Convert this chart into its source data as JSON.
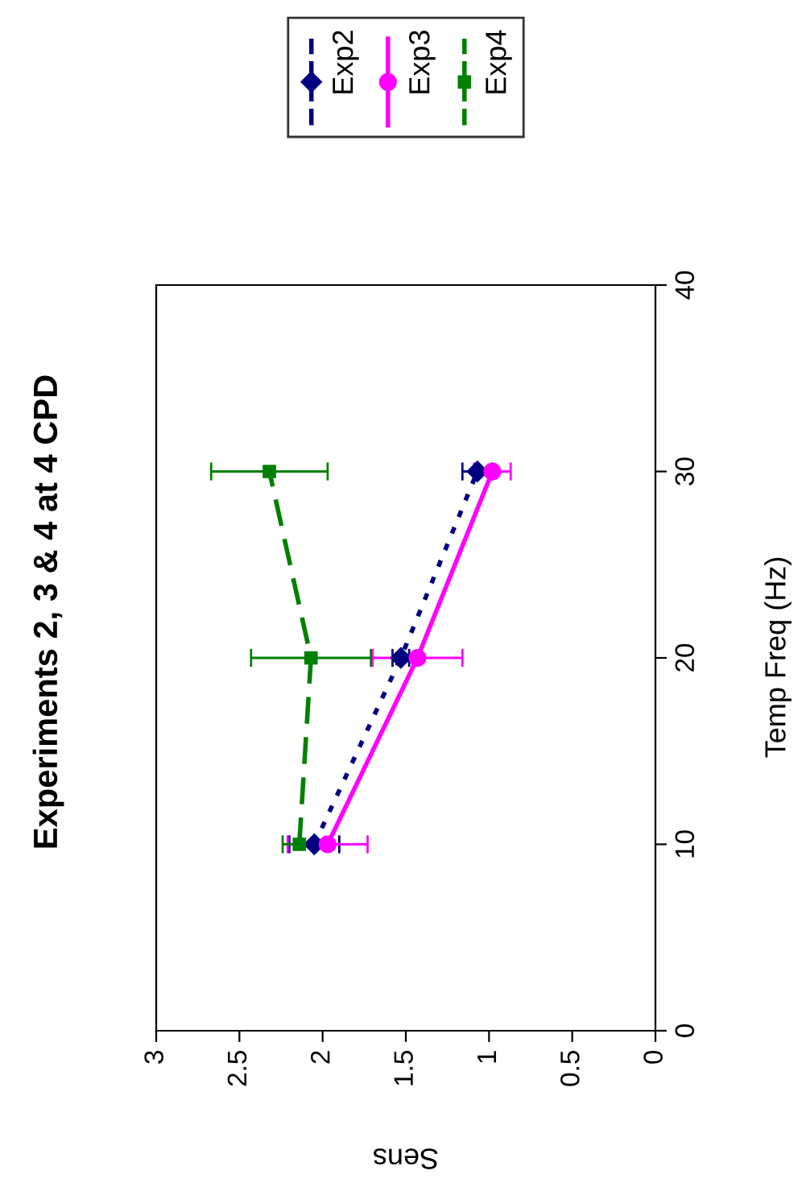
{
  "chart_data": {
    "type": "line",
    "title": "Experiments 2, 3 & 4 at 4 CPD",
    "xlabel": "Sens",
    "ylabel": "Temp Freq (Hz)",
    "xlim": [
      3,
      0
    ],
    "xticks": [
      3,
      2.5,
      2,
      1.5,
      1,
      0.5,
      0
    ],
    "ylim": [
      0,
      40
    ],
    "yticks": [
      0,
      10,
      20,
      30,
      40
    ],
    "grid": false,
    "legend": "top",
    "series": [
      {
        "name": "Exp2",
        "color": "#000080",
        "marker": "diamond",
        "line_style": "dotted",
        "x": [
          2.05,
          1.53,
          1.07
        ],
        "values": [
          10,
          20,
          30
        ],
        "xerrors": [
          0.15,
          0.05,
          0.09
        ]
      },
      {
        "name": "Exp3",
        "color": "#ff00ff",
        "marker": "circle",
        "line_style": "solid",
        "x": [
          1.97,
          1.43,
          0.98
        ],
        "values": [
          10,
          20,
          30
        ],
        "xerrors": [
          0.24,
          0.27,
          0.11
        ]
      },
      {
        "name": "Exp4",
        "color": "#008000",
        "marker": "square",
        "line_style": "dashed",
        "x": [
          2.14,
          2.07,
          2.32
        ],
        "values": [
          10,
          20,
          30
        ],
        "xerrors": [
          0.1,
          0.36,
          0.35
        ]
      }
    ]
  }
}
